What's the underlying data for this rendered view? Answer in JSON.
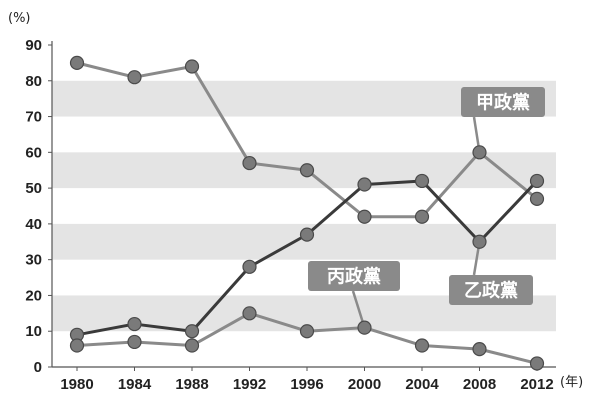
{
  "chart_data": {
    "type": "line",
    "x": [
      "1980",
      "1984",
      "1988",
      "1992",
      "1996",
      "2000",
      "2004",
      "2008",
      "2012"
    ],
    "y_unit": "(%)",
    "x_unit": "(年)",
    "ylim": [
      0,
      90
    ],
    "yticks": [
      "0",
      "10",
      "20",
      "30",
      "40",
      "50",
      "60",
      "70",
      "80",
      "90"
    ],
    "grid": "alternating horizontal bands",
    "series": [
      {
        "name": "甲政黨",
        "values": [
          85,
          81,
          84,
          57,
          55,
          42,
          42,
          60,
          47
        ],
        "color": "#8a8a8a"
      },
      {
        "name": "乙政黨",
        "values": [
          9,
          12,
          10,
          28,
          37,
          51,
          52,
          35,
          52
        ],
        "color": "#3a3a3a"
      },
      {
        "name": "丙政黨",
        "values": [
          6,
          7,
          6,
          15,
          10,
          11,
          6,
          5,
          1
        ],
        "color": "#8a8a8a"
      }
    ],
    "callouts": [
      {
        "series": "甲政黨",
        "text": "甲政黨"
      },
      {
        "series": "乙政黨",
        "text": "乙政黨"
      },
      {
        "series": "丙政黨",
        "text": "丙政黨"
      }
    ]
  },
  "colors": {
    "band": "#e4e4e4",
    "axis": "#555555",
    "callout_bg": "#8a8a8a",
    "marker": "#7a7a7a"
  }
}
